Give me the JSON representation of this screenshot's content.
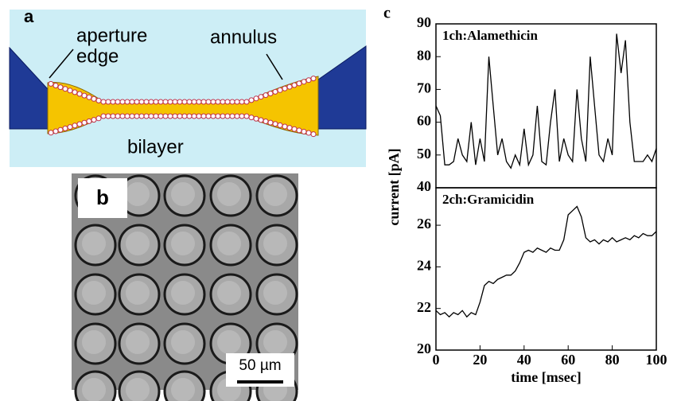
{
  "panels": {
    "a": {
      "label": "a",
      "aperture": [
        "aperture",
        "edge"
      ],
      "annulus": "annulus",
      "bilayer": "bilayer"
    },
    "b": {
      "label": "b",
      "scale": "50 µm"
    },
    "c": {
      "label": "c",
      "ylabel": "current [pA]"
    }
  },
  "chart_data": [
    {
      "type": "line",
      "title": "1ch:Alamethicin",
      "x": [
        0,
        2,
        4,
        6,
        8,
        10,
        12,
        14,
        16,
        18,
        20,
        22,
        24,
        26,
        28,
        30,
        32,
        34,
        36,
        38,
        40,
        42,
        44,
        46,
        48,
        50,
        52,
        54,
        56,
        58,
        60,
        62,
        64,
        66,
        68,
        70,
        72,
        74,
        76,
        78,
        80,
        82,
        84,
        86,
        88,
        90,
        92,
        94,
        96,
        98,
        100
      ],
      "series": [
        {
          "color": "#000000",
          "values": [
            65,
            62,
            47,
            47,
            48,
            55,
            50,
            48,
            60,
            47,
            55,
            48,
            80,
            65,
            50,
            55,
            48,
            46,
            50,
            47,
            58,
            47,
            50,
            65,
            48,
            47,
            60,
            70,
            48,
            55,
            50,
            48,
            70,
            55,
            48,
            80,
            65,
            50,
            48,
            55,
            50,
            87,
            75,
            85,
            60,
            48,
            48,
            48,
            50,
            48,
            52
          ]
        }
      ],
      "xlim": [
        0,
        100
      ],
      "ylim": [
        40,
        90
      ],
      "yticks": [
        40,
        50,
        60,
        70,
        80,
        90
      ]
    },
    {
      "type": "line",
      "title": "2ch:Gramicidin",
      "xlabel": "time [msec]",
      "x": [
        0,
        2,
        4,
        6,
        8,
        10,
        12,
        14,
        16,
        18,
        20,
        22,
        24,
        26,
        28,
        30,
        32,
        34,
        36,
        38,
        40,
        42,
        44,
        46,
        48,
        50,
        52,
        54,
        56,
        58,
        60,
        62,
        64,
        66,
        68,
        70,
        72,
        74,
        76,
        78,
        80,
        82,
        84,
        86,
        88,
        90,
        92,
        94,
        96,
        98,
        100
      ],
      "series": [
        {
          "color": "#000000",
          "values": [
            21.9,
            21.7,
            21.8,
            21.6,
            21.8,
            21.7,
            21.9,
            21.6,
            21.8,
            21.7,
            22.3,
            23.1,
            23.3,
            23.2,
            23.4,
            23.5,
            23.6,
            23.6,
            23.8,
            24.2,
            24.7,
            24.8,
            24.7,
            24.9,
            24.8,
            24.7,
            24.9,
            24.8,
            24.8,
            25.3,
            26.5,
            26.7,
            26.9,
            26.4,
            25.4,
            25.2,
            25.3,
            25.1,
            25.3,
            25.2,
            25.4,
            25.2,
            25.3,
            25.4,
            25.3,
            25.5,
            25.4,
            25.6,
            25.5,
            25.5,
            25.7
          ]
        }
      ],
      "xlim": [
        0,
        100
      ],
      "ylim": [
        20,
        27.8
      ],
      "xticks": [
        0,
        20,
        40,
        60,
        80,
        100
      ],
      "yticks": [
        20,
        22,
        24,
        26
      ]
    }
  ]
}
